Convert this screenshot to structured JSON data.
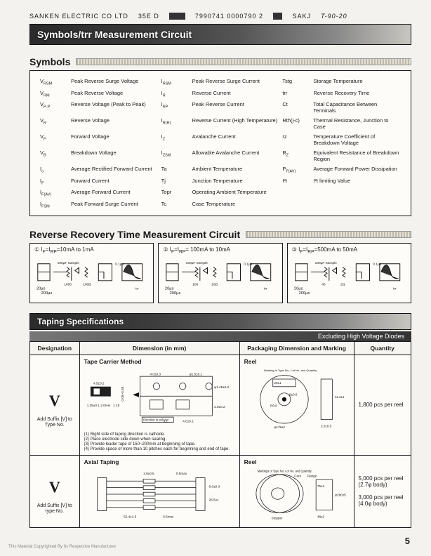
{
  "header": {
    "company": "SANKEN ELECTRIC CO LTD",
    "code1": "35E  D",
    "code2": "7990741 0000790 2",
    "code3": "SAKJ",
    "hand": "T-90-20"
  },
  "banner1": "Symbols/trr Measurement Circuit",
  "symbols_title": "Symbols",
  "symbols": [
    {
      "s": "V<sub>RSM</sub>",
      "d": "Peak Reverse Surge Voltage"
    },
    {
      "s": "I<sub>RSM</sub>",
      "d": "Peak Reverse Surge Current"
    },
    {
      "s": "Tstg",
      "d": "Storage Temperature"
    },
    {
      "s": "V<sub>RM</sub>",
      "d": "Peak Reverse Voltage"
    },
    {
      "s": "I<sub>R</sub>",
      "d": "Reverse Current"
    },
    {
      "s": "trr",
      "d": "Reverse Recovery Time"
    },
    {
      "s": "V<sub>P-P</sub>",
      "d": "Reverse Voltage (Peak to Peak)"
    },
    {
      "s": "I<sub>RP</sub>",
      "d": "Peak Reverse Current"
    },
    {
      "s": "Ct",
      "d": "Total Capacitance Between Terminals"
    },
    {
      "s": "V<sub>R</sub>",
      "d": "Reverse Voltage"
    },
    {
      "s": "I<sub>R(H)</sub>",
      "d": "Reverse Current (High Temperature)"
    },
    {
      "s": "Rth(j-c)",
      "d": "Thermal Resistance, Junction to Case"
    },
    {
      "s": "V<sub>F</sub>",
      "d": "Forward Voltage"
    },
    {
      "s": "I<sub>Z</sub>",
      "d": "Avalanche Current"
    },
    {
      "s": "rz",
      "d": "Temperature Coefficient of Breakdown Voltage"
    },
    {
      "s": "V<sub>B</sub>",
      "d": "Breakdown Voltage"
    },
    {
      "s": "I<sub>ZSM</sub>",
      "d": "Allowable Avalanche Current"
    },
    {
      "s": "R<sub>Z</sub>",
      "d": "Equivalent Resistance of Breakdown Region"
    },
    {
      "s": "I<sub>o</sub>",
      "d": "Average Rectified Forward Current"
    },
    {
      "s": "Ta",
      "d": "Ambient Temperature"
    },
    {
      "s": "P<sub>F(AV)</sub>",
      "d": "Average Forward Power Dissipation"
    },
    {
      "s": "I<sub>F</sub>",
      "d": "Forward Current"
    },
    {
      "s": "Tj",
      "d": "Junction Temperature"
    },
    {
      "s": "I²t",
      "d": "I²t limiting Value"
    },
    {
      "s": "I<sub>F(AV)</sub>",
      "d": "Average Forward Current"
    },
    {
      "s": "Topr",
      "d": "Operating Ambient Temperature"
    },
    {
      "s": "",
      "d": ""
    },
    {
      "s": "I<sub>FSM</sub>",
      "d": "Peak Forward Surge Current"
    },
    {
      "s": "Tc",
      "d": "Case Temperature"
    },
    {
      "s": "",
      "d": ""
    }
  ],
  "rrt_title": "Reverse Recovery Time Measurement Circuit",
  "circuits": [
    {
      "num": "①",
      "cond": "I<sub>F</sub>=I<sub>RP</sub>=10mA to 1mA",
      "sample": "100µF Sample",
      "r1": "1000",
      "r2": "100Ω",
      "t1": "20µs",
      "t2": "200µs",
      "t3": "0.1µs"
    },
    {
      "num": "②",
      "cond": "I<sub>F</sub>=I<sub>RP</sub>= 100mA to 10mA",
      "sample": "100µF Sample",
      "r1": "100",
      "r2": "10Ω",
      "t1": "20µs",
      "t2": "200µs",
      "t3": "0.1µs"
    },
    {
      "num": "③",
      "cond": "I<sub>F</sub>=I<sub>RP</sub>=500mA to 50mA",
      "sample": "100µF Sample",
      "r1": "40",
      "r2": "2Ω",
      "t1": "20µs",
      "t2": "200µs",
      "t3": "0.1µs"
    }
  ],
  "banner2": "Taping Specifications",
  "subbanner": "Excluding High Voltage Diodes",
  "taping": {
    "headers": [
      "Designation",
      "Dimension (in mm)",
      "Packaging Dimension and Marking",
      "Quantity"
    ],
    "rows": [
      {
        "designation_mark": "V",
        "suffix": "Add Suffix [V] to Type No.",
        "method": "Tape Carrier Method",
        "dims": [
          "4.5±0.2",
          "1.35±0.1",
          "2.0min",
          "1.15",
          "4.0±0.3",
          "0.05~0.35",
          "φ1.5±0.1",
          "φ1.45±0.2",
          "4.0±0.1",
          "2.0±0.2",
          "3.1",
          "Direction to pull out"
        ],
        "notes": [
          "(1) Right side of taping direction is cathode.",
          "(2) Place electrode side down when sealing.",
          "(3) Provide leader tape of 150~200mm at beginning of tape.",
          "(4) Provide space of more than 10 pitches each for beginning and end of tape."
        ],
        "pkg_title": "Reel",
        "pkg_labels": [
          "Marking of Type No., Lot No. and Quantity",
          "20±1",
          "8±0.5",
          "R0.0",
          "φ178±2",
          "2.0±0.5",
          "11.4±1"
        ],
        "qty": "1,800 pcs per reel"
      },
      {
        "designation_mark": "V",
        "suffix": "Add Suffix [V] to type No.",
        "method": "Axial Taping",
        "dims": [
          "0.5max",
          "1.0±0.5",
          "52.4±1.5",
          "26.5±1",
          "0.5max",
          "6.0±0.3",
          "2.0±0.3"
        ],
        "notes": [],
        "pkg_title": "Reel",
        "pkg_labels": [
          "Markings of Type No, Lot No. and Quantity",
          "Core",
          "Flange",
          "75±2",
          "φ290±5",
          "Stopper",
          "48±2"
        ],
        "qty": "5,000 pcs per reel (2.7φ body)\n\n3,000 pcs per reel (4.0φ body)"
      }
    ]
  },
  "page_number": "5",
  "copyright": "This Material Copyrighted By Its Respective Manufacturer",
  "colors": {
    "bg": "#f4f2ee",
    "ink": "#1a1a1a",
    "box": "#fdfcf9",
    "banner_dark": "#2b2b2b"
  }
}
